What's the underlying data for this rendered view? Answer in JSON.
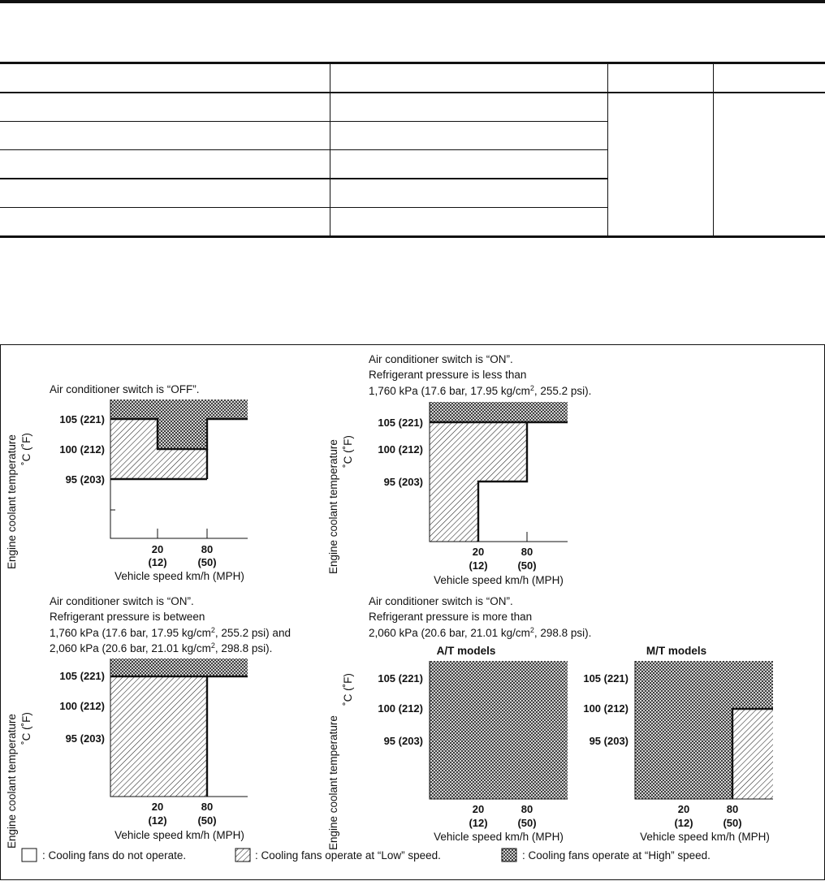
{
  "table": {
    "header": [
      "",
      "",
      "",
      ""
    ],
    "rows": [
      [
        "",
        ""
      ],
      [
        "",
        ""
      ],
      [
        "",
        ""
      ],
      [
        "",
        ""
      ],
      [
        "",
        ""
      ]
    ]
  },
  "figure": {
    "ylabel_line1": "Engine coolant temperature",
    "ylabel_line2": "˚C (˚F)",
    "xlabel": "Vehicle speed km/h (MPH)",
    "temp_ticks": [
      "105 (221)",
      "100 (212)",
      "95 (203)"
    ],
    "speed_ticks": [
      {
        "kmh": "20",
        "mph": "(12)"
      },
      {
        "kmh": "80",
        "mph": "(50)"
      }
    ],
    "panels": [
      {
        "caption": [
          "Air conditioner switch is “OFF”."
        ],
        "regions": "high above 105 (221) at all speeds; high above 100 (212) between 20 and 80; low 95–105 below 20; low 95–100 between 20 and 80; off above 80 below 105"
      },
      {
        "caption": [
          "Air conditioner switch is “ON”.",
          "Refrigerant pressure is less than",
          "1,760 kPa (17.6 bar, 17.95 kg/cm",
          "2",
          ", 255.2 psi)."
        ],
        "regions": "high above 105 (221); low below 20 up to 105; low 20–80 from 95 to 105"
      },
      {
        "caption": [
          "Air conditioner switch is “ON”.",
          "Refrigerant pressure is between",
          "1,760 kPa (17.6 bar, 17.95 kg/cm",
          "2",
          ", 255.2 psi) and",
          "2,060 kPa (20.6 bar, 21.01 kg/cm",
          "2",
          ", 298.8 psi)."
        ],
        "regions": "high above 105 (221); low below 80 up to 105"
      },
      {
        "caption": [
          "Air conditioner switch is “ON”.",
          "Refrigerant pressure is more than",
          "2,060 kPa (20.6 bar, 21.01 kg/cm",
          "2",
          ", 298.8 psi)."
        ],
        "subcharts": [
          {
            "title": "A/T models",
            "regions": "high at all speeds and temperatures"
          },
          {
            "title": "M/T models",
            "regions": "high everywhere except low above 80 below 100 (212)"
          }
        ]
      }
    ],
    "legend": [
      {
        "pattern": "empty",
        "text": ": Cooling fans do not operate."
      },
      {
        "pattern": "hatch",
        "text": ": Cooling fans operate at “Low” speed."
      },
      {
        "pattern": "cross",
        "text": ": Cooling fans operate at “High” speed."
      }
    ]
  }
}
